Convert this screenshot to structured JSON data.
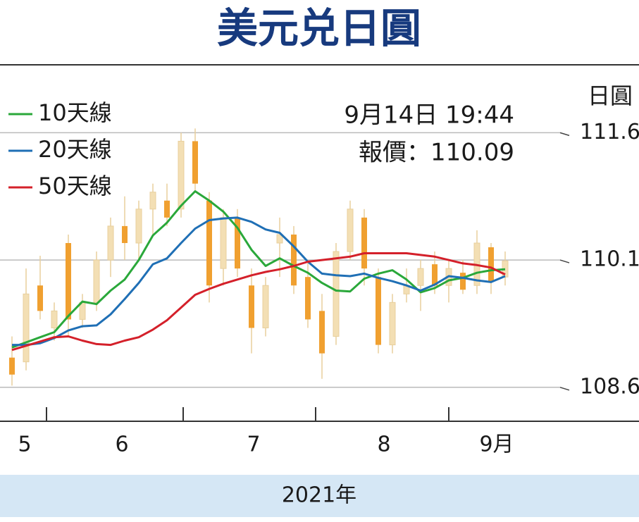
{
  "chart_data": {
    "type": "candlestick",
    "title": "美元兑日圓",
    "ylabel": "日圓",
    "xlabel": "2021年",
    "annotations": [
      "9月14日 19:44",
      "報價：110.09"
    ],
    "month_labels": [
      "5",
      "6",
      "7",
      "8",
      "9月"
    ],
    "ylim": [
      108.2,
      112.4
    ],
    "yticks": [
      108.6,
      110.1,
      111.6
    ],
    "grid": true,
    "legend": "upper left",
    "up_color": "#f3dfb4",
    "down_color": "#f0a030",
    "wick_color": "#e8cf9c",
    "candles": {
      "open": [
        108.95,
        108.9,
        109.8,
        109.3,
        110.3,
        109.4,
        109.6,
        110.1,
        110.5,
        110.3,
        110.7,
        110.8,
        110.7,
        111.5,
        110.8,
        110.0,
        110.6,
        109.8,
        109.3,
        110.3,
        110.4,
        109.9,
        109.5,
        109.2,
        110.2,
        110.6,
        109.9,
        109.1,
        109.7,
        109.8,
        110.05,
        109.8,
        109.95,
        109.8,
        110.25,
        109.9
      ],
      "high": [
        109.2,
        110.0,
        110.15,
        109.6,
        110.4,
        109.7,
        110.2,
        110.6,
        110.85,
        110.8,
        111.0,
        111.0,
        111.6,
        111.65,
        110.9,
        110.7,
        110.7,
        110.0,
        109.9,
        110.6,
        110.5,
        110.1,
        109.7,
        110.3,
        110.8,
        110.7,
        110.0,
        109.7,
        110.0,
        110.1,
        110.2,
        110.1,
        110.1,
        110.45,
        110.3,
        110.2
      ],
      "low": [
        108.62,
        108.8,
        109.4,
        109.15,
        109.2,
        109.3,
        109.5,
        109.9,
        110.1,
        110.1,
        110.4,
        110.5,
        110.6,
        110.9,
        109.6,
        109.8,
        109.9,
        109.0,
        109.2,
        109.9,
        109.7,
        109.3,
        108.7,
        109.1,
        110.1,
        109.8,
        109.0,
        109.0,
        109.6,
        109.5,
        109.7,
        109.6,
        109.7,
        109.7,
        109.7,
        109.8
      ],
      "close": [
        108.75,
        109.7,
        109.5,
        109.5,
        109.4,
        109.6,
        110.1,
        110.5,
        110.3,
        110.7,
        110.9,
        110.6,
        111.5,
        111.0,
        109.8,
        110.6,
        110.0,
        109.3,
        109.8,
        110.4,
        109.8,
        109.4,
        109.0,
        110.2,
        110.7,
        110.0,
        109.1,
        109.6,
        109.8,
        110.0,
        109.8,
        110.0,
        109.75,
        110.3,
        109.85,
        110.09
      ]
    },
    "series": [
      {
        "name": "10天線",
        "color": "#2aa83a",
        "values": [
          109.07,
          109.13,
          109.19,
          109.25,
          109.44,
          109.61,
          109.58,
          109.74,
          109.87,
          110.1,
          110.39,
          110.54,
          110.74,
          110.91,
          110.8,
          110.67,
          110.48,
          110.22,
          110.03,
          110.12,
          110.03,
          109.95,
          109.83,
          109.74,
          109.73,
          109.88,
          109.94,
          109.98,
          109.87,
          109.72,
          109.77,
          109.86,
          109.89,
          109.95,
          109.98,
          109.99
        ]
      },
      {
        "name": "20天線",
        "color": "#1f6fb5",
        "values": [
          109.1,
          109.1,
          109.12,
          109.18,
          109.27,
          109.32,
          109.33,
          109.46,
          109.64,
          109.83,
          110.05,
          110.12,
          110.3,
          110.47,
          110.57,
          110.59,
          110.6,
          110.55,
          110.46,
          110.42,
          110.26,
          110.08,
          109.94,
          109.92,
          109.91,
          109.94,
          109.89,
          109.85,
          109.8,
          109.74,
          109.81,
          109.91,
          109.89,
          109.86,
          109.84,
          109.91
        ]
      },
      {
        "name": "50天線",
        "color": "#d4202a",
        "values": [
          109.04,
          109.09,
          109.14,
          109.19,
          109.2,
          109.15,
          109.11,
          109.1,
          109.15,
          109.19,
          109.28,
          109.39,
          109.54,
          109.69,
          109.76,
          109.82,
          109.87,
          109.92,
          109.96,
          109.99,
          110.03,
          110.08,
          110.1,
          110.12,
          110.14,
          110.18,
          110.18,
          110.18,
          110.18,
          110.16,
          110.14,
          110.1,
          110.06,
          110.04,
          110.01,
          109.93
        ]
      }
    ]
  }
}
